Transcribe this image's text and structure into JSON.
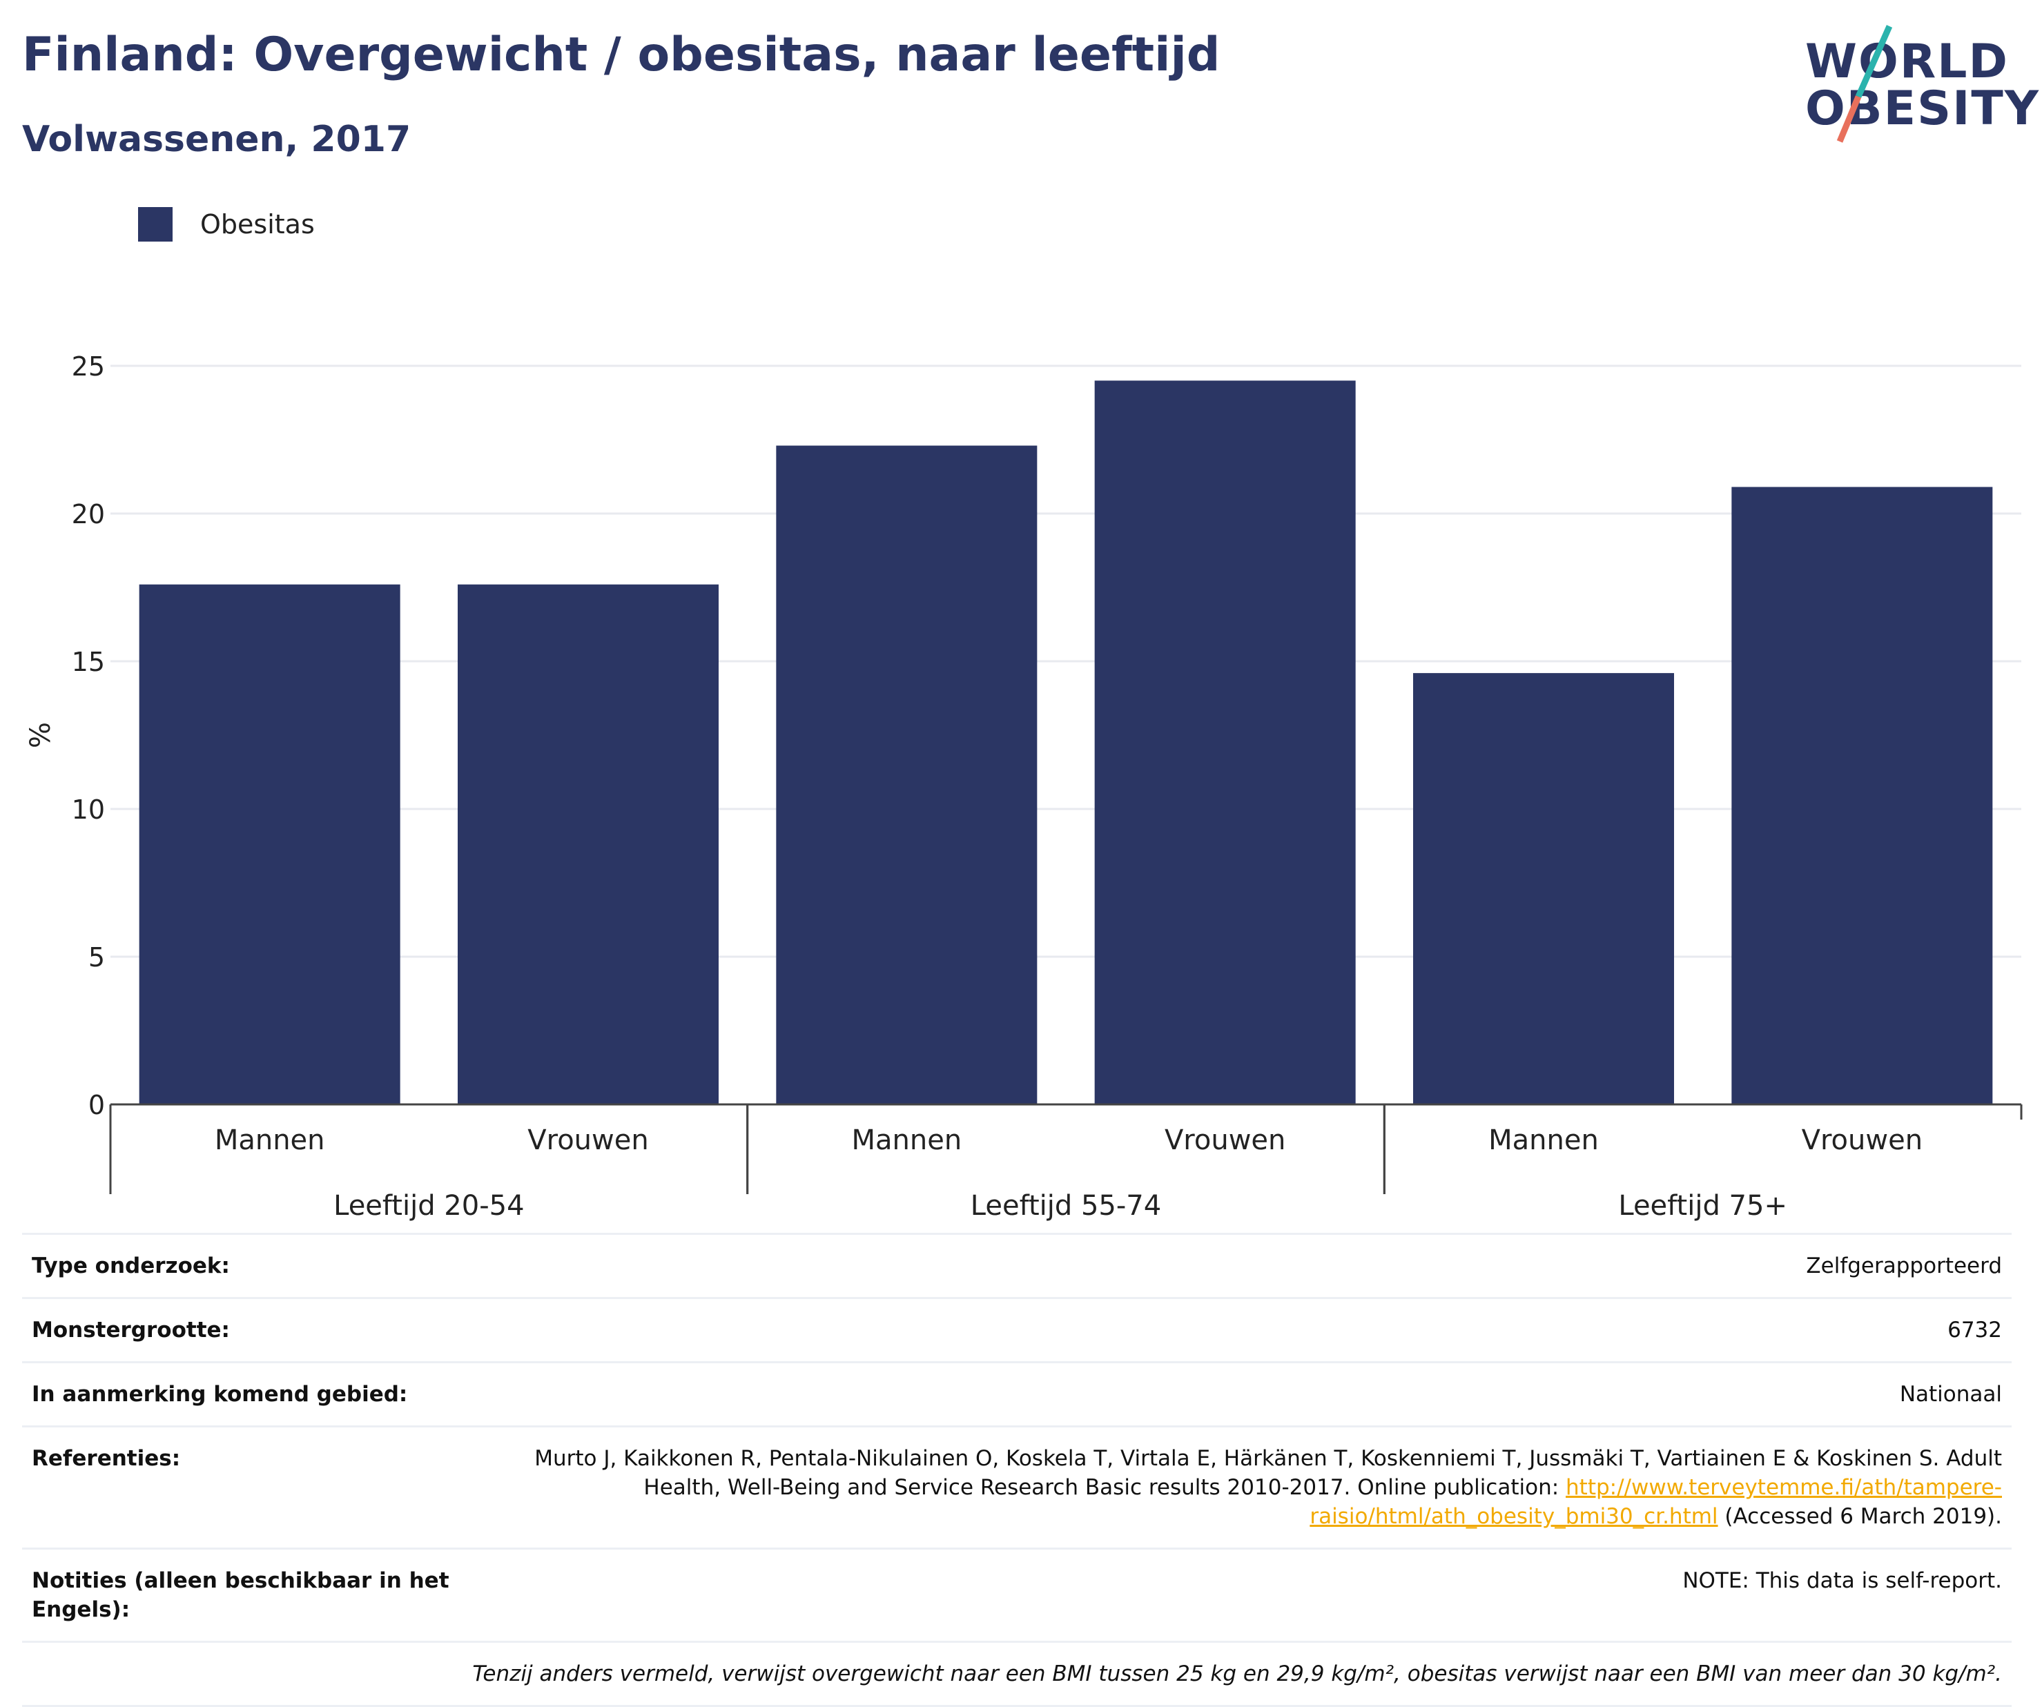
{
  "header": {
    "title": "Finland: Overgewicht / obesitas, naar leeftijd",
    "subtitle": "Volwassenen, 2017"
  },
  "logo": {
    "line1": "WORLD",
    "line2": "OBESITY",
    "accent_teal": "#2bb3ad",
    "accent_coral": "#e8705c"
  },
  "legend": {
    "label": "Obesitas",
    "color": "#2b3664"
  },
  "chart_data": {
    "type": "bar",
    "ylabel": "%",
    "xlabel": "",
    "ylim": [
      0,
      25
    ],
    "yticks": [
      0,
      5,
      10,
      15,
      20,
      25
    ],
    "grid": true,
    "legend_position": "top-left",
    "bar_color": "#2b3664",
    "groups": [
      {
        "label": "Leeftijd 20-54",
        "categories": [
          "Mannen",
          "Vrouwen"
        ],
        "values": [
          17.6,
          17.6
        ]
      },
      {
        "label": "Leeftijd 55-74",
        "categories": [
          "Mannen",
          "Vrouwen"
        ],
        "values": [
          22.3,
          24.5
        ]
      },
      {
        "label": "Leeftijd 75+",
        "categories": [
          "Mannen",
          "Vrouwen"
        ],
        "values": [
          14.6,
          20.9
        ]
      }
    ],
    "series": [
      {
        "name": "Obesitas",
        "values": [
          17.6,
          17.6,
          22.3,
          24.5,
          14.6,
          20.9
        ]
      }
    ]
  },
  "info": {
    "type_label": "Type onderzoek:",
    "type_value": "Zelfgerapporteerd",
    "sample_label": "Monstergrootte:",
    "sample_value": "6732",
    "area_label": "In aanmerking komend gebied:",
    "area_value": "Nationaal",
    "ref_label": "Referenties:",
    "ref_text_1": "Murto J, Kaikkonen R, Pentala-Nikulainen O, Koskela T, Virtala E, Härkänen T, Koskenniemi T, Jussmäki T, Vartiainen E & Koskinen S. Adult Health, Well-Being and Service Research Basic results 2010-2017. Online publication: ",
    "ref_link": "http://www.terveytemme.fi/ath/tampere-raisio/html/ath_obesity_bmi30_cr.html",
    "ref_text_2": " (Accessed 6 March 2019).",
    "notes_label": "Notities (alleen beschikbaar in het Engels):",
    "notes_value": "NOTE: This data is self-report.",
    "footnote": "Tenzij anders vermeld, verwijst overgewicht naar een BMI tussen 25 kg en 29,9 kg/m², obesitas verwijst naar een BMI van meer dan 30 kg/m²."
  }
}
